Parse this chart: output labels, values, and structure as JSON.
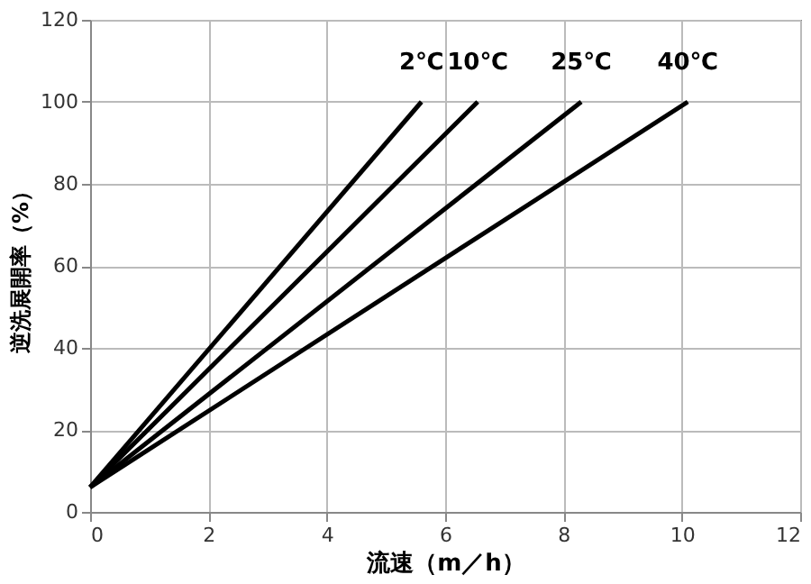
{
  "chart_data": {
    "type": "line",
    "xlabel": "流速（m／h）",
    "ylabel": "逆洗展開率（%）",
    "series": [
      {
        "name": "2℃",
        "color": "#000000",
        "x": [
          0,
          5.6
        ],
        "values": [
          6,
          100
        ]
      },
      {
        "name": "10℃",
        "color": "#000000",
        "x": [
          0,
          6.55
        ],
        "values": [
          6,
          100
        ]
      },
      {
        "name": "25℃",
        "color": "#000000",
        "x": [
          0,
          8.3
        ],
        "values": [
          6,
          100
        ]
      },
      {
        "name": "40℃",
        "color": "#000000",
        "x": [
          0,
          10.1
        ],
        "values": [
          6,
          100
        ]
      }
    ],
    "xlim": [
      0,
      12
    ],
    "xticks": [
      0,
      2,
      4,
      6,
      8,
      10,
      12
    ],
    "ylim": [
      0,
      120
    ],
    "yticks": [
      0,
      20,
      40,
      60,
      80,
      100,
      120
    ],
    "grid": true,
    "legend": false,
    "marker": "none",
    "line_style": "solid"
  }
}
